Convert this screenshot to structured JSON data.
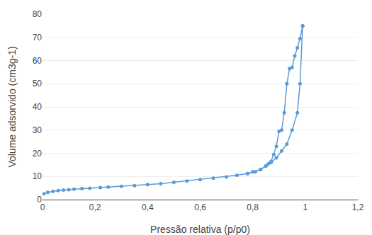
{
  "chart_data": {
    "type": "line",
    "xlabel": "Pressão relativa (p/p0)",
    "ylabel": "Volume adsorvido (cm3g-1)",
    "xlim": [
      0,
      1.2
    ],
    "ylim": [
      0,
      80
    ],
    "xticks": [
      0,
      {
        "value": 0.2,
        "label": "0,2"
      },
      {
        "value": 0.4,
        "label": "0,4"
      },
      {
        "value": 0.6,
        "label": "0,6"
      },
      {
        "value": 0.8,
        "label": "0,8"
      },
      1,
      {
        "value": 1.2,
        "label": "1,2"
      }
    ],
    "yticks": [
      0,
      10,
      20,
      30,
      40,
      50,
      60,
      70,
      80
    ],
    "grid": "y",
    "series": [
      {
        "color": "#5b9bd5",
        "marker": "circle",
        "line_style": "solid",
        "x": [
          0.005,
          0.02,
          0.04,
          0.06,
          0.08,
          0.1,
          0.12,
          0.15,
          0.18,
          0.22,
          0.25,
          0.3,
          0.35,
          0.4,
          0.45,
          0.5,
          0.55,
          0.6,
          0.65,
          0.7,
          0.74,
          0.78,
          0.81,
          0.83,
          0.85,
          0.87,
          0.89,
          0.91,
          0.93,
          0.95,
          0.97,
          0.98,
          0.99
        ],
        "values": [
          2.5,
          3.1,
          3.6,
          3.9,
          4.1,
          4.3,
          4.5,
          4.7,
          4.9,
          5.2,
          5.4,
          5.7,
          6.0,
          6.5,
          6.9,
          7.5,
          8.0,
          8.6,
          9.2,
          9.8,
          10.5,
          11.2,
          12.0,
          13.0,
          14.5,
          16.0,
          18.0,
          21.0,
          24.0,
          30.0,
          37.5,
          50.0,
          75.0
        ]
      },
      {
        "color": "#5b9bd5",
        "marker": "circle",
        "line_style": "solid",
        "x": [
          0.99,
          0.98,
          0.97,
          0.96,
          0.95,
          0.94,
          0.93,
          0.92,
          0.91,
          0.9,
          0.89,
          0.88,
          0.87,
          0.86,
          0.85,
          0.83,
          0.8,
          0.78
        ],
        "values": [
          75.0,
          69.5,
          65.5,
          62.0,
          57.0,
          56.5,
          50.0,
          37.5,
          30.0,
          29.5,
          23.0,
          19.5,
          16.5,
          15.5,
          14.5,
          13.0,
          12.0,
          11.2
        ]
      }
    ]
  }
}
